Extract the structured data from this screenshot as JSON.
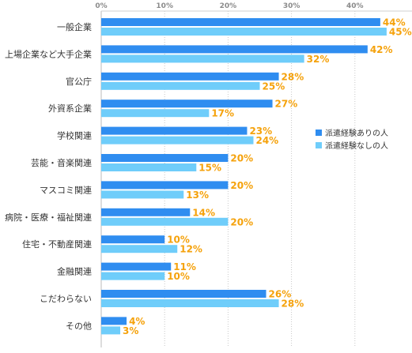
{
  "chart_data": {
    "type": "bar",
    "orientation": "horizontal",
    "categories": [
      "一般企業",
      "上場企業など大手企業",
      "官公庁",
      "外資系企業",
      "学校関連",
      "芸能・音楽関連",
      "マスコミ関連",
      "病院・医療・福祉関連",
      "住宅・不動産関連",
      "金融関連",
      "こだわらない",
      "その他"
    ],
    "series": [
      {
        "name": "派遣経験ありの人",
        "color": "#2f8df0",
        "values": [
          44,
          42,
          28,
          27,
          23,
          20,
          20,
          14,
          10,
          11,
          26,
          4
        ]
      },
      {
        "name": "派遣経験なしの人",
        "color": "#6fcdfa",
        "values": [
          45,
          32,
          25,
          17,
          24,
          15,
          13,
          20,
          12,
          10,
          28,
          3
        ]
      }
    ],
    "xlim": [
      0,
      48
    ],
    "x_ticks": [
      0,
      10,
      20,
      30,
      40
    ],
    "tick_suffix": "%",
    "value_suffix": "%",
    "value_label_color": "#f5a20c",
    "grid": true,
    "legend_position": "right-middle"
  }
}
